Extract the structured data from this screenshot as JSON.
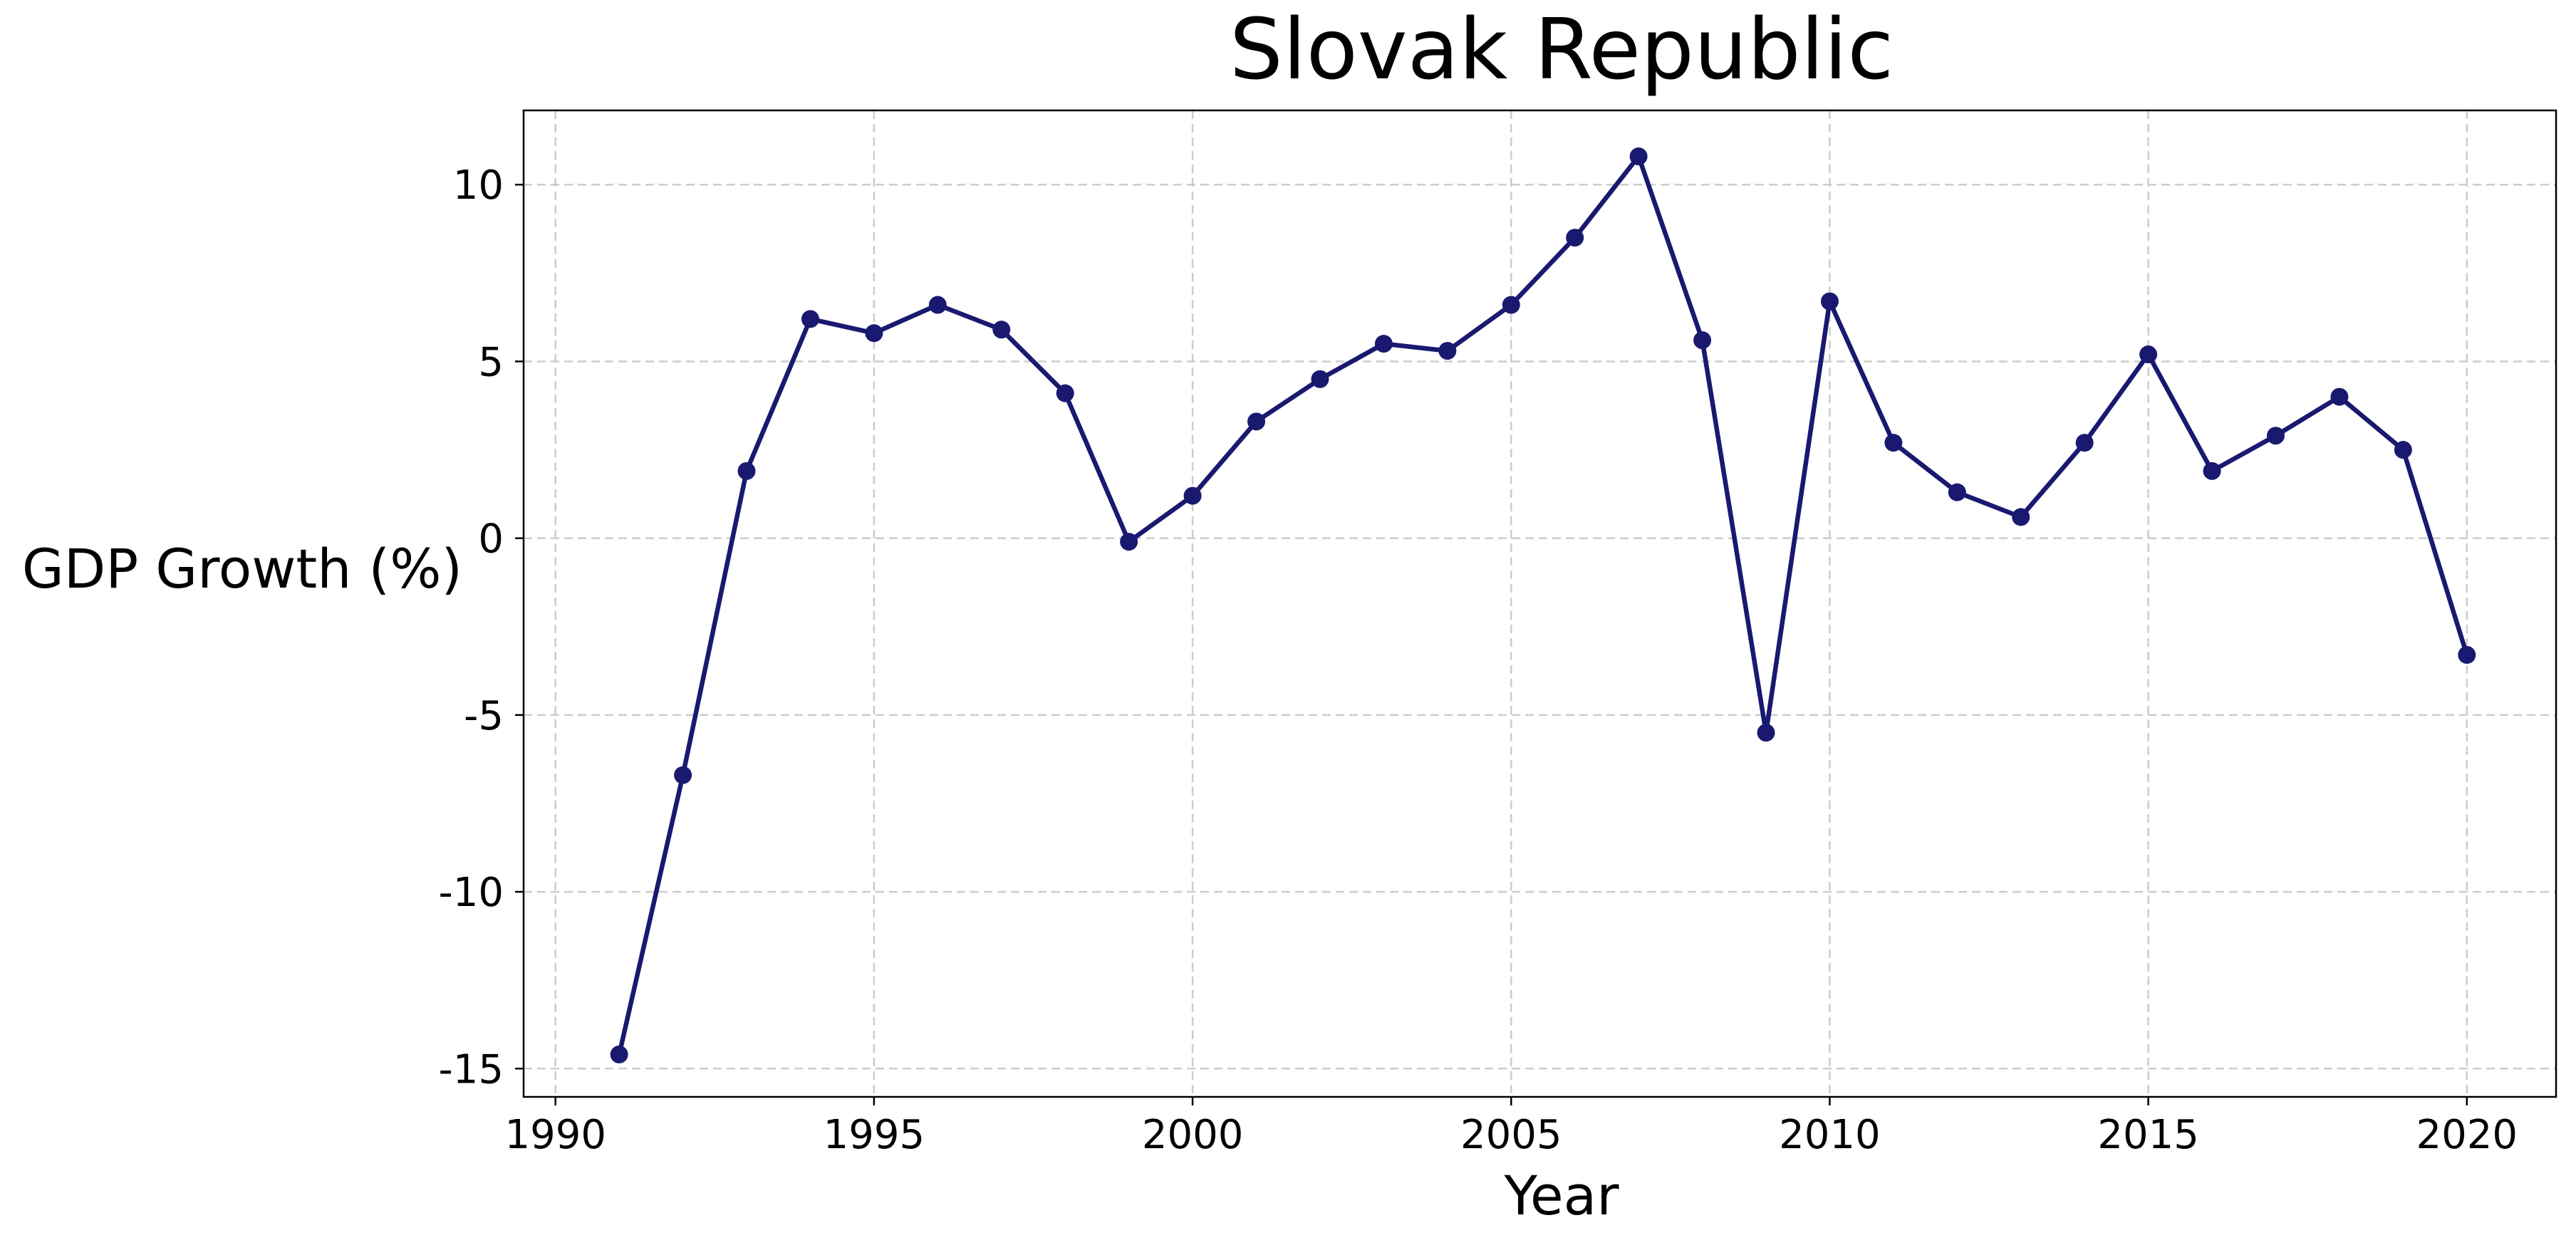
{
  "chart_data": {
    "type": "line",
    "title": "Slovak Republic",
    "xlabel": "Year",
    "ylabel": "GDP Growth (%)",
    "xlim": [
      1989.5,
      2021.4
    ],
    "ylim": [
      -15.8,
      12.1
    ],
    "x_ticks": [
      1990,
      1995,
      2000,
      2005,
      2010,
      2015,
      2020
    ],
    "x_tick_labels": [
      "1990",
      "1995",
      "2000",
      "2005",
      "2010",
      "2015",
      "2020"
    ],
    "y_ticks": [
      -15,
      -10,
      -5,
      0,
      5,
      10
    ],
    "y_tick_labels": [
      "-15",
      "-10",
      "-5",
      "0",
      "5",
      "10"
    ],
    "grid": true,
    "line_color": "#191970",
    "grid_color": "#cccccc",
    "series": [
      {
        "x": [
          1991,
          1992,
          1993,
          1994,
          1995,
          1996,
          1997,
          1998,
          1999,
          2000,
          2001,
          2002,
          2003,
          2004,
          2005,
          2006,
          2007,
          2008,
          2009,
          2010,
          2011,
          2012,
          2013,
          2014,
          2015,
          2016,
          2017,
          2018,
          2019,
          2020
        ],
        "values": [
          -14.6,
          -6.7,
          1.9,
          6.2,
          5.8,
          6.6,
          5.9,
          4.1,
          -0.1,
          1.2,
          3.3,
          4.5,
          5.5,
          5.3,
          6.6,
          8.5,
          10.8,
          5.6,
          -5.5,
          6.7,
          2.7,
          1.3,
          0.6,
          2.7,
          5.2,
          1.9,
          2.9,
          4.0,
          2.5,
          -3.3
        ]
      }
    ]
  }
}
